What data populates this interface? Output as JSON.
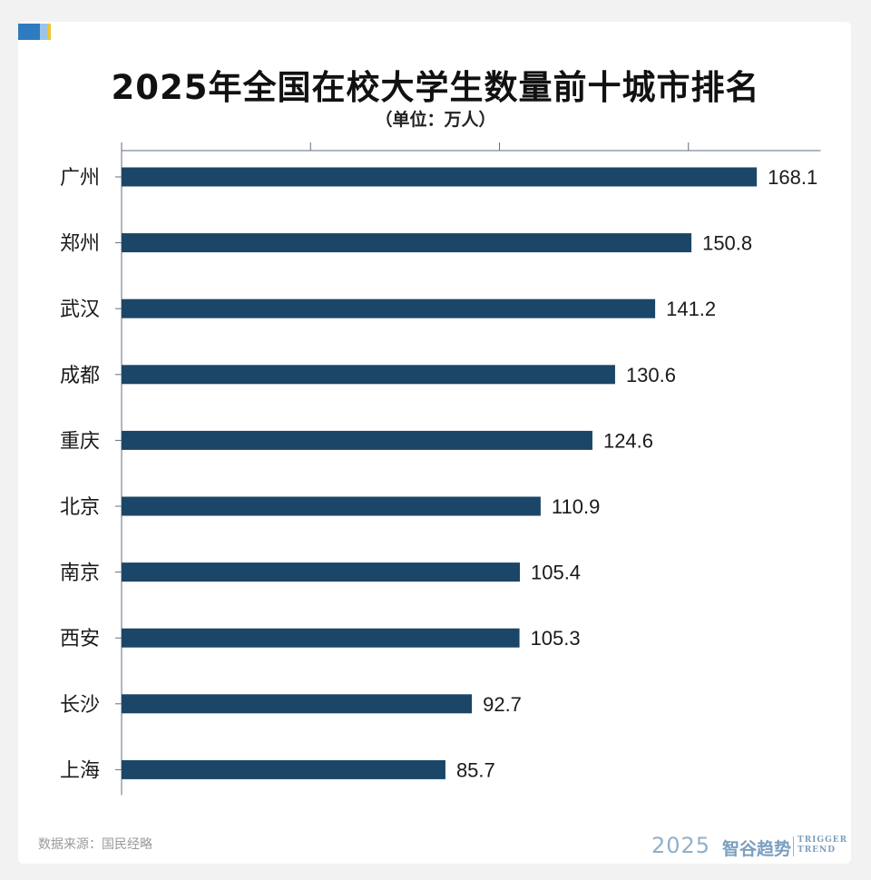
{
  "header": {
    "title": "2025年全国在校大学生数量前十城市排名",
    "subtitle": "（单位：万人）"
  },
  "footer": {
    "source": "数据来源：国民经略",
    "brand_year": "2025",
    "brand_name": "智谷趋势",
    "brand_en_line1": "TRIGGER",
    "brand_en_line2": "TREND"
  },
  "colors": {
    "bar": "#1b4667",
    "axis": "#5f6f80",
    "accent_blue": "#2e7bc0",
    "accent_light": "#9cc4e4",
    "accent_yellow": "#f2c230"
  },
  "chart_data": {
    "type": "bar",
    "orientation": "horizontal",
    "categories": [
      "广州",
      "郑州",
      "武汉",
      "成都",
      "重庆",
      "北京",
      "南京",
      "西安",
      "长沙",
      "上海"
    ],
    "values": [
      168.1,
      150.8,
      141.2,
      130.6,
      124.6,
      110.9,
      105.4,
      105.3,
      92.7,
      85.7
    ],
    "value_labels": [
      "168.1",
      "150.8",
      "141.2",
      "130.6",
      "124.6",
      "110.9",
      "105.4",
      "105.3",
      "92.7",
      "85.7"
    ],
    "xlim": [
      0,
      185
    ],
    "axis_ticks": [
      0,
      50,
      100,
      150
    ],
    "tick_labels_shown": false,
    "grid": false
  }
}
